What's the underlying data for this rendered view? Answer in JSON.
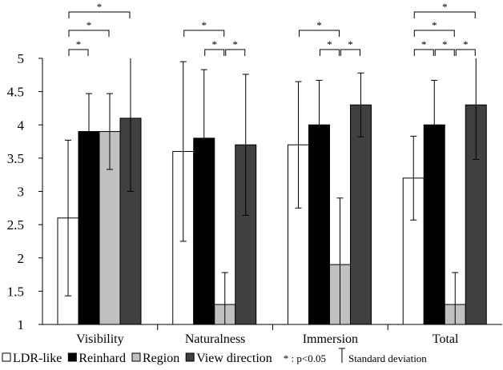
{
  "chart_data": {
    "type": "bar",
    "title": "",
    "xlabel": "",
    "ylabel": "",
    "ylim": [
      1,
      5
    ],
    "y_ticks": [
      "1",
      "1.5",
      "2",
      "2.5",
      "3",
      "3.5",
      "4",
      "4.5",
      "5"
    ],
    "grid": false,
    "legend_position": "bottom",
    "categories": [
      "Visibility",
      "Naturalness",
      "Immersion",
      "Total"
    ],
    "series": [
      {
        "name": "LDR-like",
        "color": "#ffffff",
        "values": [
          2.6,
          3.6,
          3.7,
          3.2
        ],
        "error": [
          1.17,
          1.35,
          0.95,
          0.63
        ]
      },
      {
        "name": "Reinhard",
        "color": "#000000",
        "values": [
          3.9,
          3.8,
          4.0,
          4.0
        ],
        "error": [
          0.57,
          1.03,
          0.67,
          0.67
        ]
      },
      {
        "name": "Region",
        "color": "#c0c0c0",
        "values": [
          3.9,
          1.3,
          1.9,
          1.3
        ],
        "error": [
          0.57,
          0.48,
          1.0,
          0.48
        ]
      },
      {
        "name": "View direction",
        "color": "#404040",
        "values": [
          4.1,
          3.7,
          4.3,
          4.3
        ],
        "error": [
          1.1,
          1.06,
          0.48,
          0.82
        ]
      }
    ],
    "significance": [
      {
        "category": 0,
        "from": 0,
        "to": 1,
        "level": 1,
        "label": "*"
      },
      {
        "category": 0,
        "from": 0,
        "to": 2,
        "level": 2,
        "label": "*"
      },
      {
        "category": 0,
        "from": 0,
        "to": 3,
        "level": 3,
        "label": "*"
      },
      {
        "category": 1,
        "from": 1,
        "to": 2,
        "level": 1,
        "label": "*"
      },
      {
        "category": 1,
        "from": 2,
        "to": 3,
        "level": 1,
        "label": "*"
      },
      {
        "category": 1,
        "from": 0,
        "to": 2,
        "level": 2,
        "label": "*"
      },
      {
        "category": 2,
        "from": 1,
        "to": 2,
        "level": 1,
        "label": "*"
      },
      {
        "category": 2,
        "from": 2,
        "to": 3,
        "level": 1,
        "label": "*"
      },
      {
        "category": 2,
        "from": 0,
        "to": 2,
        "level": 2,
        "label": "*"
      },
      {
        "category": 3,
        "from": 0,
        "to": 1,
        "level": 1,
        "label": "*"
      },
      {
        "category": 3,
        "from": 1,
        "to": 2,
        "level": 1,
        "label": "*"
      },
      {
        "category": 3,
        "from": 2,
        "to": 3,
        "level": 1,
        "label": "*"
      },
      {
        "category": 3,
        "from": 0,
        "to": 2,
        "level": 2,
        "label": "*"
      },
      {
        "category": 3,
        "from": 0,
        "to": 3,
        "level": 3,
        "label": "*"
      }
    ],
    "legend_notes": {
      "significance": "* : p<0.05",
      "error_bar": "Standard deviation"
    }
  }
}
